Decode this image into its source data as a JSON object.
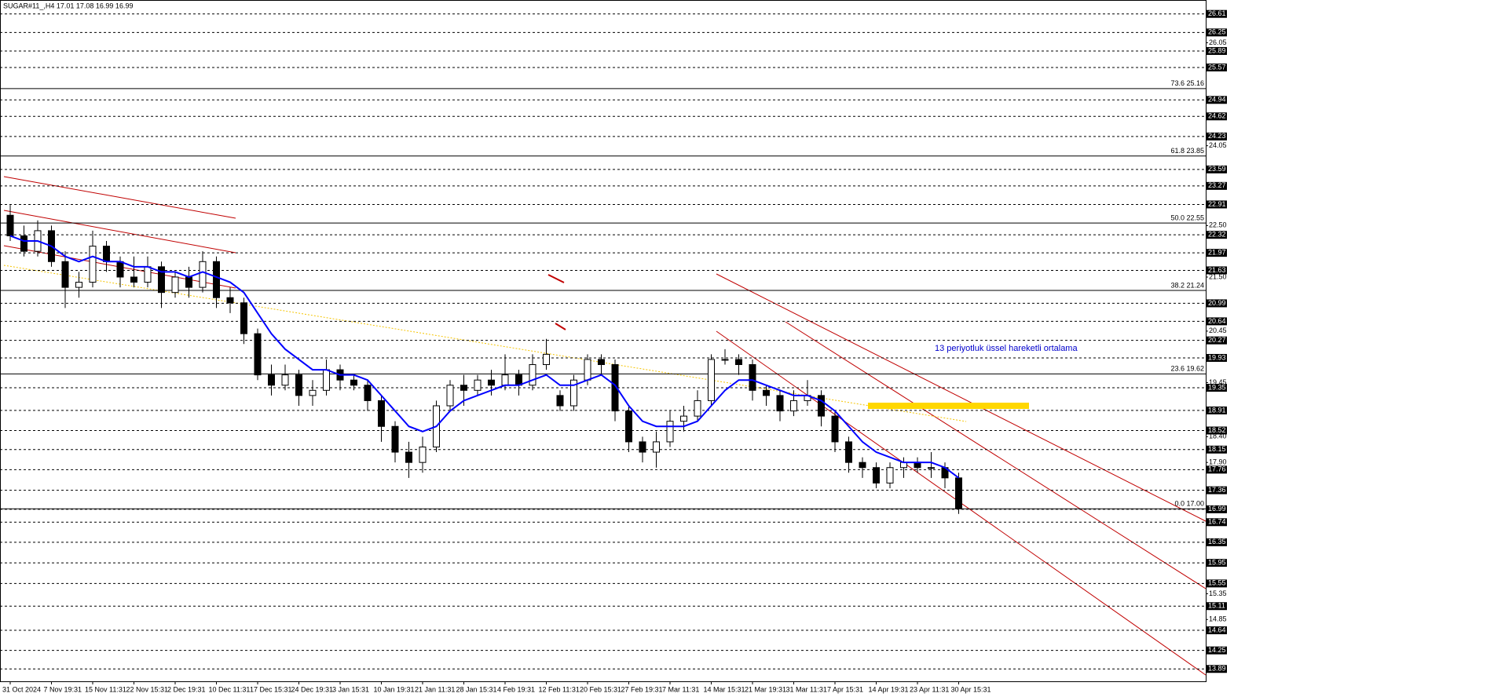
{
  "chart_data": {
    "type": "candlestick",
    "title": "SUGAR#11_,H4  17.01 17.08 16.99 16.99",
    "annotation": "13 periyotluk üssel hareketli ortalama",
    "categories": [
      "31 Oct 2024",
      null,
      null,
      "7 Nov 19:31",
      null,
      null,
      "15 Nov 11:31",
      null,
      null,
      "22 Nov 15:31",
      null,
      null,
      "2 Dec 19:31",
      null,
      null,
      "10 Dec 11:31",
      null,
      null,
      "17 Dec 15:31",
      null,
      null,
      "24 Dec 19:31",
      null,
      null,
      "3 Jan 15:31",
      null,
      null,
      "10 Jan 19:31",
      null,
      null,
      "21 Jan 11:31",
      null,
      null,
      "28 Jan 15:31",
      null,
      null,
      "4 Feb 19:31",
      null,
      null,
      "12 Feb 11:31",
      null,
      null,
      "20 Feb 15:31",
      null,
      null,
      "27 Feb 19:31",
      null,
      null,
      "7 Mar 11:31",
      null,
      null,
      "14 Mar 15:31",
      null,
      null,
      "21 Mar 19:31",
      null,
      null,
      "31 Mar 11:31",
      null,
      null,
      "7 Apr 15:31",
      null,
      null,
      "14 Apr 19:31",
      null,
      null,
      "23 Apr 11:31",
      null,
      null,
      "30 Apr 15:31"
    ],
    "open": [
      22.7,
      22.3,
      22.0,
      22.4,
      21.8,
      21.3,
      21.4,
      22.1,
      21.8,
      21.5,
      21.4,
      21.7,
      21.2,
      21.5,
      21.3,
      21.8,
      21.1,
      21.0,
      20.4,
      19.6,
      19.4,
      19.6,
      19.2,
      19.3,
      19.7,
      19.5,
      19.4,
      19.1,
      18.6,
      18.1,
      17.9,
      18.2,
      19.0,
      19.4,
      19.3,
      19.5,
      19.4,
      19.6,
      19.4,
      19.8,
      19.2,
      19.0,
      19.5,
      19.9,
      19.8,
      18.9,
      18.3,
      18.1,
      18.3,
      18.7,
      18.8,
      19.1,
      19.9,
      19.9,
      19.8,
      19.3,
      19.2,
      18.9,
      19.1,
      19.2,
      18.8,
      18.3,
      17.9,
      17.8,
      17.5,
      17.8,
      17.9,
      17.8,
      17.8,
      17.6
    ],
    "high": [
      22.9,
      22.5,
      22.6,
      22.5,
      22.0,
      21.6,
      22.4,
      22.2,
      21.9,
      21.9,
      21.9,
      21.8,
      21.6,
      21.7,
      22.0,
      21.9,
      21.3,
      21.1,
      20.5,
      19.8,
      19.8,
      19.7,
      19.5,
      19.9,
      19.8,
      19.6,
      19.5,
      19.2,
      18.7,
      18.3,
      18.4,
      19.1,
      19.5,
      19.6,
      19.6,
      19.7,
      20.0,
      19.7,
      20.0,
      20.3,
      19.3,
      19.6,
      20.0,
      20.0,
      19.9,
      19.0,
      18.4,
      18.5,
      18.9,
      19.0,
      19.3,
      20.0,
      20.1,
      20.0,
      19.9,
      19.4,
      19.3,
      19.3,
      19.5,
      19.3,
      18.9,
      18.4,
      18.0,
      17.9,
      17.9,
      18.0,
      18.0,
      18.1,
      17.9,
      17.7
    ],
    "low": [
      22.2,
      21.9,
      21.9,
      21.7,
      20.9,
      21.1,
      21.3,
      21.6,
      21.3,
      21.3,
      21.3,
      20.9,
      21.1,
      21.1,
      21.2,
      20.9,
      20.8,
      20.2,
      19.5,
      19.2,
      19.3,
      19.0,
      19.0,
      19.2,
      19.3,
      19.3,
      18.9,
      18.3,
      17.9,
      17.6,
      17.7,
      18.1,
      18.9,
      19.0,
      19.2,
      19.2,
      19.3,
      19.2,
      19.3,
      19.7,
      18.9,
      18.9,
      19.4,
      19.6,
      18.7,
      18.1,
      17.9,
      17.8,
      18.2,
      18.5,
      18.7,
      19.0,
      19.8,
      19.6,
      19.1,
      19.0,
      18.7,
      18.8,
      19.0,
      18.6,
      18.1,
      17.7,
      17.6,
      17.4,
      17.4,
      17.6,
      17.7,
      17.6,
      17.4,
      16.9
    ],
    "close": [
      22.3,
      22.0,
      22.4,
      21.8,
      21.3,
      21.4,
      22.1,
      21.8,
      21.5,
      21.4,
      21.7,
      21.2,
      21.5,
      21.3,
      21.8,
      21.1,
      21.0,
      20.4,
      19.6,
      19.4,
      19.6,
      19.2,
      19.3,
      19.7,
      19.5,
      19.4,
      19.1,
      18.6,
      18.1,
      17.9,
      18.2,
      19.0,
      19.4,
      19.3,
      19.5,
      19.4,
      19.6,
      19.4,
      19.8,
      20.0,
      19.0,
      19.5,
      19.9,
      19.8,
      18.9,
      18.3,
      18.1,
      18.3,
      18.7,
      18.8,
      19.1,
      19.9,
      19.9,
      19.8,
      19.3,
      19.2,
      18.9,
      19.1,
      19.2,
      18.8,
      18.3,
      17.9,
      17.8,
      17.5,
      17.8,
      17.9,
      17.8,
      17.8,
      17.6,
      17.0
    ],
    "ema": {
      "color": "#0000ff",
      "values": [
        22.3,
        22.2,
        22.2,
        22.1,
        21.9,
        21.8,
        21.9,
        21.8,
        21.8,
        21.7,
        21.7,
        21.6,
        21.6,
        21.5,
        21.6,
        21.5,
        21.4,
        21.2,
        20.8,
        20.4,
        20.1,
        19.9,
        19.7,
        19.7,
        19.6,
        19.6,
        19.5,
        19.2,
        18.9,
        18.6,
        18.5,
        18.6,
        18.9,
        19.1,
        19.2,
        19.3,
        19.4,
        19.4,
        19.5,
        19.6,
        19.4,
        19.4,
        19.5,
        19.6,
        19.4,
        19.0,
        18.7,
        18.6,
        18.6,
        18.6,
        18.7,
        19.0,
        19.3,
        19.5,
        19.5,
        19.4,
        19.3,
        19.2,
        19.2,
        19.1,
        18.9,
        18.6,
        18.3,
        18.1,
        18.0,
        17.9,
        17.9,
        17.9,
        17.8,
        17.6
      ]
    },
    "ylim": [
      13.65,
      26.88
    ],
    "yticks": [
      26.05,
      24.05,
      {
        "value": 22.5,
        "label": "22.50"
      },
      {
        "value": 21.5,
        "label": "21.50"
      },
      20.45,
      19.45,
      {
        "value": 18.4,
        "label": "18.40"
      },
      {
        "value": 17.9,
        "label": "17.90"
      },
      15.35,
      14.85
    ],
    "levels": [
      26.61,
      26.25,
      25.89,
      25.57,
      24.94,
      24.62,
      24.23,
      23.59,
      23.27,
      22.91,
      22.32,
      21.97,
      21.63,
      20.99,
      20.64,
      20.27,
      19.93,
      19.35,
      18.91,
      18.52,
      18.15,
      17.76,
      17.36,
      16.99,
      16.74,
      16.35,
      15.95,
      15.55,
      15.11,
      14.64,
      14.25,
      13.89
    ],
    "fib_levels": [
      {
        "value": 25.16,
        "label": "73.6 25.16"
      },
      {
        "value": 23.85,
        "label": "61.8 23.85"
      },
      {
        "value": 22.55,
        "label": "50.0 22.55"
      },
      {
        "value": 21.24,
        "label": "38.2 21.24"
      },
      {
        "value": 19.62,
        "label": "23.6 19.62"
      },
      {
        "value": 17.0,
        "label": "0.0 17.00"
      }
    ],
    "up_color": "#ffffff",
    "down_color": "#000000"
  }
}
